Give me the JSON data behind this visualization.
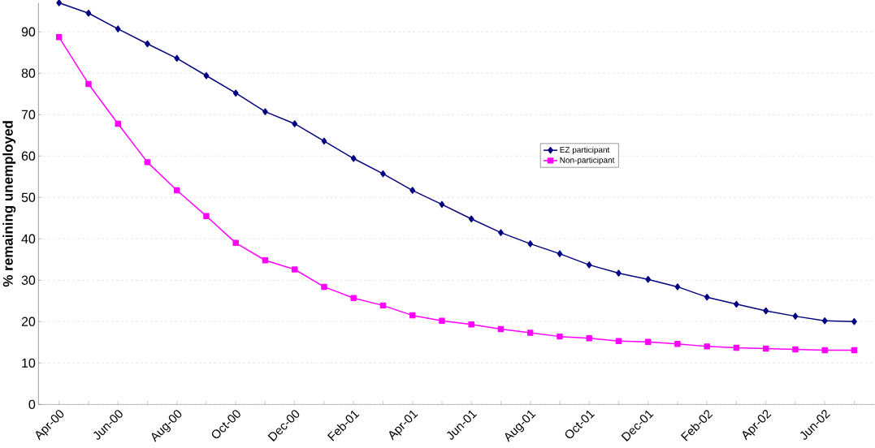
{
  "chart_data": {
    "type": "line",
    "ylabel": "% remaining unemployed",
    "categories": [
      "Apr-00",
      null,
      "Jun-00",
      null,
      "Aug-00",
      null,
      "Oct-00",
      null,
      "Dec-00",
      null,
      "Feb-01",
      null,
      "Apr-01",
      null,
      "Jun-01",
      null,
      "Aug-01",
      null,
      "Oct-01",
      null,
      "Dec-01",
      null,
      "Feb-02",
      null,
      "Apr-02",
      null,
      "Jun-02",
      null
    ],
    "series": [
      {
        "name": "EZ participant",
        "color": "#000080",
        "marker": "diamond",
        "values": [
          97,
          94.5,
          90.7,
          87.1,
          83.6,
          79.4,
          75.2,
          70.7,
          67.8,
          63.6,
          59.4,
          55.7,
          51.7,
          48.3,
          44.8,
          41.5,
          38.8,
          36.4,
          33.7,
          31.7,
          30.2,
          28.4,
          25.9,
          24.2,
          22.6,
          21.3,
          20.2,
          20.0
        ]
      },
      {
        "name": "Non-participant",
        "color": "#ff00ff",
        "marker": "square",
        "values": [
          88.7,
          77.4,
          67.8,
          58.5,
          51.7,
          45.5,
          39.0,
          34.8,
          32.6,
          28.4,
          25.7,
          23.9,
          21.5,
          20.2,
          19.3,
          18.2,
          17.3,
          16.4,
          16.0,
          15.3,
          15.1,
          14.6,
          14.0,
          13.7,
          13.5,
          13.3,
          13.1,
          13.1
        ]
      }
    ],
    "ylim": [
      0,
      97
    ],
    "yticks": [
      0,
      10,
      20,
      30,
      40,
      50,
      60,
      70,
      80,
      90
    ],
    "grid": "y",
    "legend": "right",
    "line_style": "solid"
  }
}
